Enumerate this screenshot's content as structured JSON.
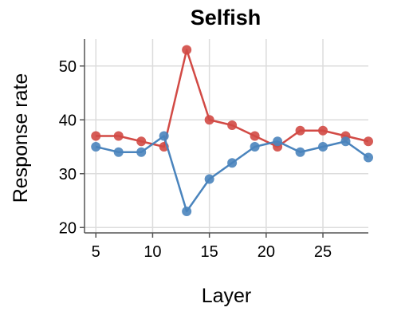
{
  "chart_data": {
    "type": "line",
    "title": "Selfish",
    "xlabel": "Layer",
    "ylabel": "Response rate",
    "xlim": [
      4,
      29
    ],
    "ylim": [
      19,
      55
    ],
    "xticks": [
      5,
      10,
      15,
      20,
      25
    ],
    "yticks": [
      20,
      30,
      40,
      50
    ],
    "grid": true,
    "legend": "none",
    "series": [
      {
        "color": "#d24a45",
        "x": [
          5,
          7,
          9,
          11,
          13,
          15,
          17,
          19,
          21,
          23,
          25,
          27,
          29
        ],
        "y": [
          37,
          37,
          36,
          35,
          53,
          40,
          39,
          37,
          35,
          38,
          38,
          37,
          36
        ]
      },
      {
        "color": "#4a84bd",
        "x": [
          5,
          7,
          9,
          11,
          13,
          15,
          17,
          19,
          21,
          23,
          25,
          27,
          29
        ],
        "y": [
          35,
          34,
          34,
          37,
          23,
          29,
          32,
          35,
          36,
          34,
          35,
          36,
          33
        ]
      }
    ]
  }
}
